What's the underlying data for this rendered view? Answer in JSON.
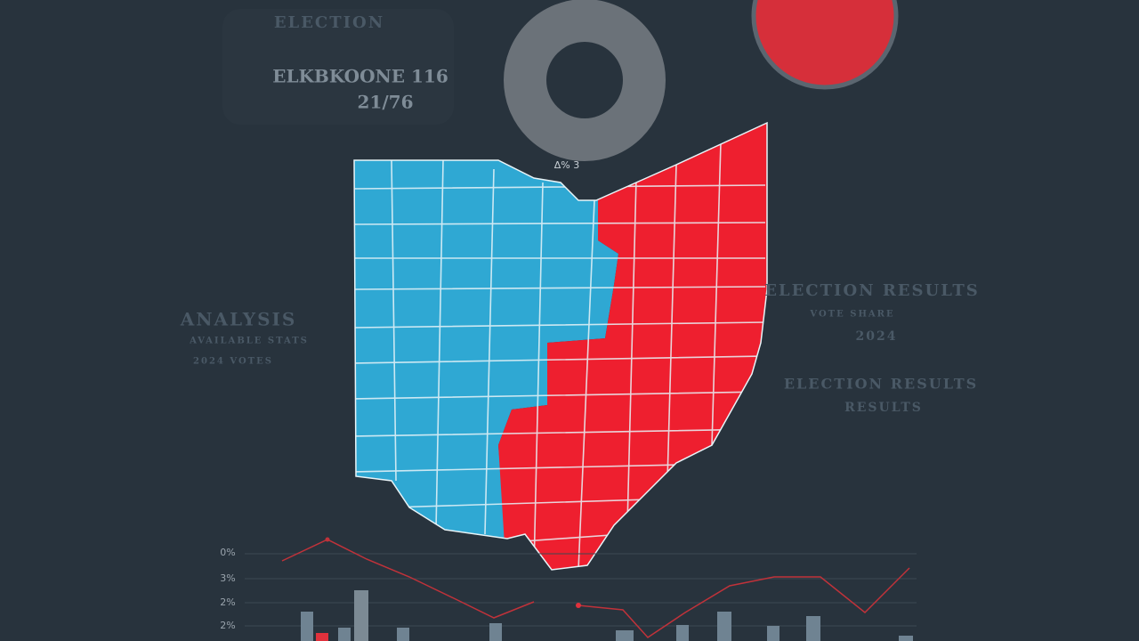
{
  "header": {
    "title": "ELECTION",
    "headline": "ELKBKOONE 116",
    "date": "21/76"
  },
  "map": {
    "label": "Δ% 3"
  },
  "left_panel": {
    "title": "ANALYSIS",
    "lines": [
      "AVAILABLE STATS",
      "2024 VOTES"
    ]
  },
  "right_panel": {
    "title": "ELECTION RESULTS",
    "lines": [
      "VOTE  SHARE",
      "2024",
      "ELECTION RESULTS",
      "RESULTS"
    ]
  },
  "bottom_chart": {
    "axis_labels": [
      "0%",
      "3%",
      "2%",
      "2%"
    ]
  }
}
